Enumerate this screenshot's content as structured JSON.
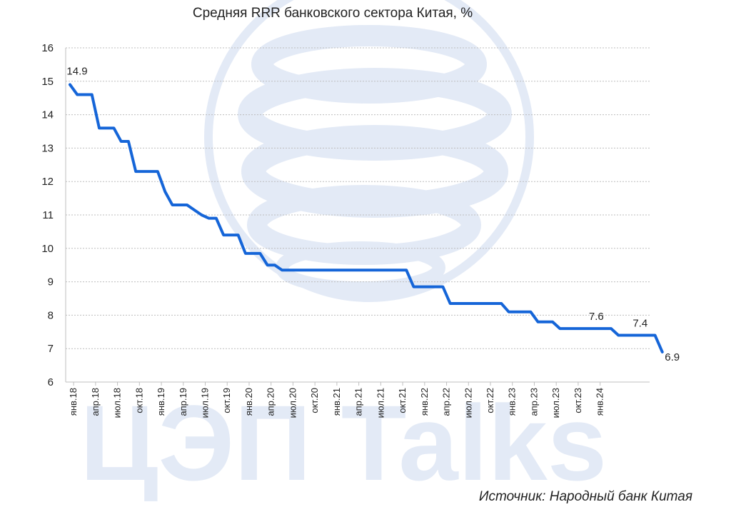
{
  "watermark": {
    "text": "ЦЭП Talks",
    "logo": "globe-logo"
  },
  "source": "Источник: Народный банк Китая",
  "colors": {
    "line": "#1565d8",
    "grid": "#bdbdbd",
    "watermark": "#e3eaf6"
  },
  "chart_data": {
    "type": "line",
    "title": "Средняя RRR банковского сектора Китая, %",
    "xlabel": "",
    "ylabel": "",
    "ylim": [
      6,
      16
    ],
    "yticks": [
      "6",
      "7",
      "8",
      "9",
      "10",
      "11",
      "12",
      "13",
      "14",
      "15",
      "16"
    ],
    "grid": true,
    "x_tick_labels": [
      "янв.18",
      "апр.18",
      "июл.18",
      "окт.18",
      "янв.19",
      "апр.19",
      "июл.19",
      "окт.19",
      "янв.20",
      "апр.20",
      "июл.20",
      "окт.20",
      "янв.21",
      "апр.21",
      "июл.21",
      "окт.21",
      "янв.22",
      "апр.22",
      "июл.22",
      "окт.22",
      "янв.23",
      "апр.23",
      "июл.23",
      "окт.23",
      "янв.24"
    ],
    "series": [
      {
        "values": [
          14.9,
          14.6,
          14.6,
          14.6,
          13.6,
          13.6,
          13.6,
          13.2,
          13.2,
          12.3,
          12.3,
          12.3,
          12.3,
          11.7,
          11.3,
          11.3,
          11.3,
          11.15,
          11.0,
          10.9,
          10.9,
          10.4,
          10.4,
          10.4,
          9.85,
          9.85,
          9.85,
          9.5,
          9.5,
          9.35,
          9.35,
          9.35,
          9.35,
          9.35,
          9.35,
          9.35,
          9.35,
          9.35,
          9.35,
          9.35,
          9.35,
          9.35,
          9.35,
          9.35,
          9.35,
          9.35,
          9.35,
          8.85,
          8.85,
          8.85,
          8.85,
          8.85,
          8.35,
          8.35,
          8.35,
          8.35,
          8.35,
          8.35,
          8.35,
          8.35,
          8.1,
          8.1,
          8.1,
          8.1,
          7.8,
          7.8,
          7.8,
          7.6,
          7.6,
          7.6,
          7.6,
          7.6,
          7.6,
          7.6,
          7.6,
          7.4,
          7.4,
          7.4,
          7.4,
          7.4,
          7.4,
          6.9
        ]
      }
    ],
    "data_labels": [
      {
        "index": 0,
        "text": "14.9"
      },
      {
        "index": 71,
        "text": "7.6"
      },
      {
        "index": 77,
        "text": "7.4"
      },
      {
        "index": 81,
        "text": "6.9"
      }
    ]
  }
}
